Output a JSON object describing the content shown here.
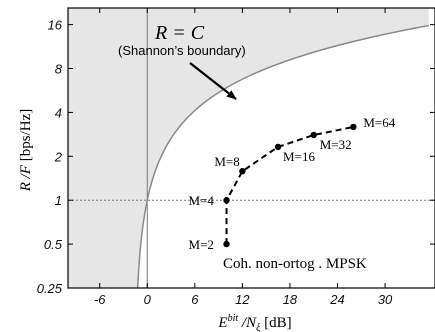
{
  "chart_data": {
    "type": "line",
    "x": {
      "label_main": "E",
      "label_sup": "bit",
      "label_rest": " /N",
      "label_sub": "ξ",
      "label_unit": "  [dB]",
      "ticks": [
        "-6",
        "0",
        "6",
        "12",
        "18",
        "24",
        "30"
      ],
      "tick_values": [
        -6,
        0,
        6,
        12,
        18,
        24,
        30
      ],
      "lim": [
        -10,
        36.3
      ]
    },
    "y": {
      "label": "R /F  [bps/Hz]",
      "scale": "log2",
      "ticks": [
        "0.25",
        "0.5",
        "1",
        "2",
        "4",
        "8",
        "16"
      ],
      "tick_values": [
        0.25,
        0.5,
        1,
        2,
        4,
        8,
        16
      ],
      "lim": [
        0.25,
        20.8
      ]
    },
    "reference_lines": {
      "x": 0,
      "y": 1
    },
    "shannon_boundary": {
      "label_math": "R = C",
      "label_text": "(Shannon’s boundary)",
      "region": "shaded"
    },
    "series": [
      {
        "name": "Coh. non-ortog . MPSK",
        "points": [
          {
            "label": "M=2",
            "x": 10,
            "y": 0.5
          },
          {
            "label": "M=4",
            "x": 10,
            "y": 1
          },
          {
            "label": "M=8",
            "x": 12,
            "y": 1.58
          },
          {
            "label": "M=16",
            "x": 16.5,
            "y": 2.32
          },
          {
            "label": "M=32",
            "x": 21,
            "y": 2.8
          },
          {
            "label": "M=64",
            "x": 26,
            "y": 3.18
          }
        ]
      }
    ],
    "grid": false
  }
}
